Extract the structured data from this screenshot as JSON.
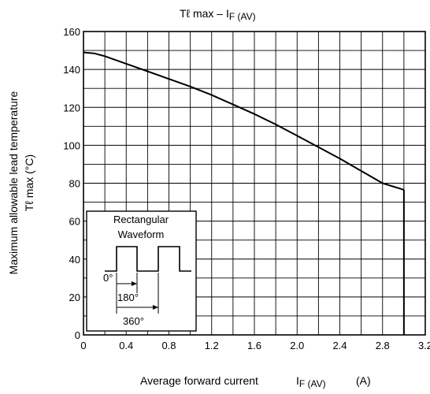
{
  "chart_data": {
    "type": "line",
    "title_main": "Tℓ max – I",
    "title_sub": "F (AV)",
    "xlabel_main": "Average forward current",
    "xlabel_symbol_main": "I",
    "xlabel_symbol_sub": "F (AV)",
    "xlabel_unit": "(A)",
    "ylabel_line1": "Maximum allowable lead temperature",
    "ylabel_line2": "Tℓ max      (°C)",
    "xlim": [
      0,
      3.2
    ],
    "ylim": [
      0,
      160
    ],
    "x_ticks": [
      "0",
      "0.4",
      "0.8",
      "1.2",
      "1.6",
      "2.0",
      "2.4",
      "2.8",
      "3.2"
    ],
    "y_ticks": [
      "0",
      "20",
      "40",
      "60",
      "80",
      "100",
      "120",
      "140",
      "160"
    ],
    "grid": true,
    "series": [
      {
        "x": [
          0.0,
          0.1,
          0.2,
          0.4,
          0.6,
          0.8,
          1.0,
          1.2,
          1.4,
          1.6,
          1.8,
          2.0,
          2.2,
          2.4,
          2.6,
          2.8,
          3.0
        ],
        "y": [
          149,
          148.5,
          147,
          143,
          139,
          135,
          131,
          126.5,
          121.5,
          116.5,
          111,
          105,
          99,
          93,
          86.5,
          80,
          76.5
        ]
      }
    ],
    "inset": {
      "title_line1": "Rectangular",
      "title_line2": "Waveform",
      "label_zero": "0°",
      "label_180": "180°",
      "label_360": "360°"
    }
  }
}
